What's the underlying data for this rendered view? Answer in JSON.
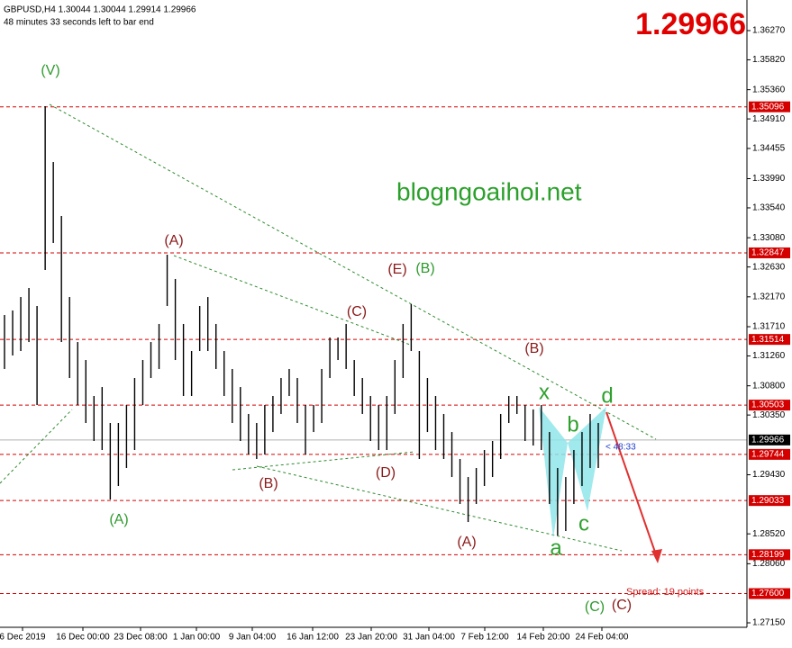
{
  "chart_data": {
    "type": "bar-range",
    "symbol_line": "GBPUSD,H4  1.30044 1.30044 1.29914 1.29966",
    "timer": "48 minutes 33 seconds left to bar end",
    "big_price": "1.29966",
    "watermark": "blogngoaihoi.net",
    "countdown": "< 48:33",
    "spread": "Spread: 19 points",
    "color": "#000000",
    "level_color": "#d40000",
    "ylim": [
      1.27081,
      1.36741
    ],
    "yticks": [
      {
        "value": 1.3627,
        "label": "1.36270"
      },
      {
        "value": 1.3582,
        "label": "1.35820"
      },
      {
        "value": 1.3536,
        "label": "1.35360"
      },
      {
        "value": 1.3491,
        "label": "1.34910"
      },
      1.34455,
      {
        "value": 1.3399,
        "label": "1.33990"
      },
      {
        "value": 1.3354,
        "label": "1.33540"
      },
      {
        "value": 1.3308,
        "label": "1.33080"
      },
      {
        "value": 1.3263,
        "label": "1.32630"
      },
      {
        "value": 1.3217,
        "label": "1.32170"
      },
      {
        "value": 1.3171,
        "label": "1.31710"
      },
      {
        "value": 1.3126,
        "label": "1.31260"
      },
      {
        "value": 1.308,
        "label": "1.30800"
      },
      {
        "value": 1.3035,
        "label": "1.30350"
      },
      {
        "value": 1.2943,
        "label": "1.29430"
      },
      {
        "value": 1.2852,
        "label": "1.28520"
      },
      {
        "value": 1.2806,
        "label": "1.28060"
      },
      {
        "value": 1.2715,
        "label": "1.27150"
      }
    ],
    "levels": [
      1.35096,
      1.32847,
      1.31514,
      1.30503,
      1.29744,
      1.29033,
      1.28199,
      {
        "value": 1.276,
        "label": "1.27600"
      }
    ],
    "current_price": 1.29966,
    "categories": [
      "6 Dec 2019",
      "16 Dec 00:00",
      "23 Dec 08:00",
      "1 Jan 00:00",
      "9 Jan 04:00",
      "16 Jan 12:00",
      "23 Jan 20:00",
      "31 Jan 04:00",
      "7 Feb 12:00",
      "14 Feb 20:00",
      "24 Feb 04:00"
    ],
    "annotations": [
      "(V)",
      "(A)",
      "(E)",
      "(B)",
      "(C)",
      "(B)",
      "x",
      "d",
      "b",
      "(B)",
      "(D)",
      "(A)",
      "(A)",
      "c",
      "a",
      "(C)",
      "(C)"
    ],
    "high": [
      1.3189,
      1.3196,
      1.32167,
      1.32306,
      1.32029,
      1.35106,
      1.34246,
      1.33415,
      1.32167,
      1.31474,
      1.31197,
      1.30643,
      1.30781,
      1.30227,
      1.30227,
      1.30504,
      1.3092,
      1.31197,
      1.31474,
      1.31752,
      1.32819,
      1.32445,
      1.31752,
      1.31336,
      1.32029,
      1.32167,
      1.31752,
      1.31336,
      1.31059,
      1.30781,
      1.30366,
      1.30227,
      1.30504,
      1.30643,
      1.3092,
      1.31059,
      1.3092,
      1.30504,
      1.30504,
      1.31059,
      1.31544,
      1.31544,
      1.31752,
      1.31197,
      1.3092,
      1.30643,
      1.30504,
      1.30643,
      1.31197,
      1.31752,
      1.32057,
      1.31336,
      1.3092,
      1.30643,
      1.30366,
      1.30088,
      1.29673,
      1.29395,
      1.29534,
      1.29811,
      1.2995,
      1.30366,
      1.30643,
      1.30643,
      1.30504,
      1.30436,
      1.30504,
      1.30088,
      1.29534,
      1.29395,
      1.29811,
      1.30088,
      1.30366,
      1.30227
    ],
    "low": [
      1.31059,
      1.31267,
      1.31336,
      1.31474,
      1.30504,
      1.32583,
      1.32999,
      1.31474,
      1.3092,
      1.30504,
      1.30227,
      1.2995,
      1.29811,
      1.29049,
      1.29257,
      1.29534,
      1.29811,
      1.30504,
      1.3092,
      1.31059,
      1.32029,
      1.31197,
      1.30643,
      1.30643,
      1.31336,
      1.31336,
      1.31059,
      1.30643,
      1.30227,
      1.2995,
      1.29742,
      1.29673,
      1.29742,
      1.30088,
      1.30366,
      1.30643,
      1.30227,
      1.29742,
      1.30088,
      1.30227,
      1.3092,
      1.31197,
      1.31059,
      1.30643,
      1.30366,
      1.2995,
      1.29811,
      1.29811,
      1.30366,
      1.3092,
      1.31336,
      1.29673,
      1.30088,
      1.29811,
      1.29673,
      1.29395,
      1.2898,
      1.28702,
      1.2898,
      1.29257,
      1.29395,
      1.29673,
      1.30227,
      1.30366,
      1.2995,
      1.2988,
      1.29811,
      1.2898,
      1.28495,
      1.28564,
      1.2898,
      1.29257,
      1.29534,
      1.29534
    ]
  }
}
